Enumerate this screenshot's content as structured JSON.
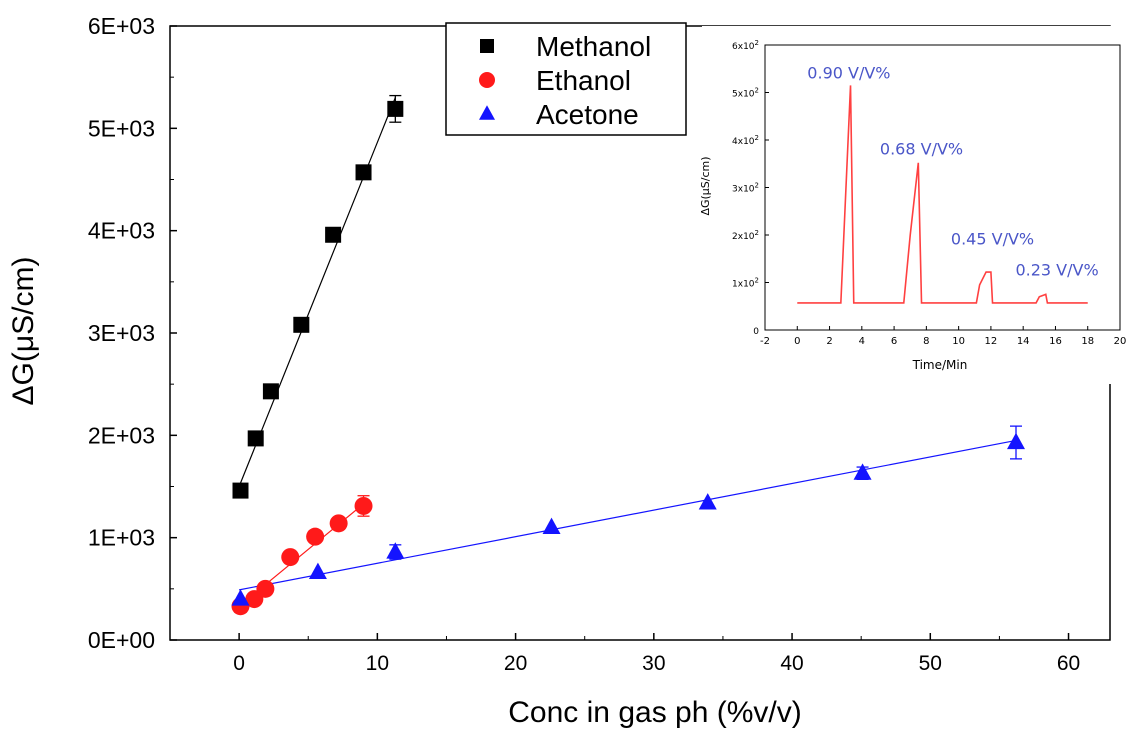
{
  "chart_data": {
    "main": {
      "type": "scatter",
      "xlabel": "Conc in gas ph (%v/v)",
      "ylabel": "ΔG(μS/cm)",
      "xlim": [
        -5,
        63
      ],
      "ylim": [
        0,
        6000
      ],
      "x_ticks": [
        {
          "value": 0,
          "label": "0"
        },
        {
          "value": 10,
          "label": "10"
        },
        {
          "value": 20,
          "label": "20"
        },
        {
          "value": 30,
          "label": "30"
        },
        {
          "value": 40,
          "label": "40"
        },
        {
          "value": 50,
          "label": "50"
        },
        {
          "value": 60,
          "label": "60"
        }
      ],
      "y_ticks": [
        {
          "value": 0,
          "label": "0E+00"
        },
        {
          "value": 1000,
          "label": "1E+03"
        },
        {
          "value": 2000,
          "label": "2E+03"
        },
        {
          "value": 3000,
          "label": "3E+03"
        },
        {
          "value": 4000,
          "label": "4E+03"
        },
        {
          "value": 5000,
          "label": "5E+03"
        },
        {
          "value": 6000,
          "label": "6E+03"
        }
      ],
      "grid": false,
      "legend_position": "top-center",
      "series": [
        {
          "name": "Methanol",
          "marker": "square",
          "color": "#000000",
          "x": [
            0.1,
            1.2,
            2.3,
            4.5,
            6.8,
            9.0,
            11.3
          ],
          "y": [
            1460,
            1970,
            2430,
            3080,
            3960,
            4570,
            5190
          ],
          "err": [
            0,
            0,
            0,
            0,
            0,
            0,
            130
          ],
          "fit": {
            "x": [
              0,
              11.3
            ],
            "y": [
              1500,
              5300
            ]
          }
        },
        {
          "name": "Ethanol",
          "marker": "circle",
          "color": "#ff1a1a",
          "x": [
            0.1,
            1.1,
            1.9,
            3.7,
            5.5,
            7.2,
            9.0
          ],
          "y": [
            330,
            400,
            500,
            810,
            1010,
            1140,
            1310
          ],
          "err": [
            40,
            30,
            0,
            0,
            0,
            0,
            100
          ],
          "fit": {
            "x": [
              0,
              9.0
            ],
            "y": [
              330,
              1330
            ]
          }
        },
        {
          "name": "Acetone",
          "marker": "triangle",
          "color": "#1414ff",
          "x": [
            0.1,
            5.7,
            11.3,
            22.6,
            33.9,
            45.1,
            56.2
          ],
          "y": [
            400,
            660,
            860,
            1100,
            1340,
            1630,
            1930
          ],
          "err": [
            0,
            0,
            70,
            0,
            0,
            60,
            160
          ],
          "fit": {
            "x": [
              0,
              56.2
            ],
            "y": [
              490,
              1950
            ]
          }
        }
      ]
    },
    "inset": {
      "type": "line",
      "xlabel": "Time/Min",
      "ylabel": "ΔG(μS/cm)",
      "xlim": [
        -2,
        20
      ],
      "ylim": [
        0,
        600
      ],
      "x_ticks": [
        {
          "value": -2,
          "label": "-2"
        },
        {
          "value": 0,
          "label": "0"
        },
        {
          "value": 2,
          "label": "2"
        },
        {
          "value": 4,
          "label": "4"
        },
        {
          "value": 6,
          "label": "6"
        },
        {
          "value": 8,
          "label": "8"
        },
        {
          "value": 10,
          "label": "10"
        },
        {
          "value": 12,
          "label": "12"
        },
        {
          "value": 14,
          "label": "14"
        },
        {
          "value": 16,
          "label": "16"
        },
        {
          "value": 18,
          "label": "18"
        },
        {
          "value": 20,
          "label": "20"
        }
      ],
      "y_ticks": [
        {
          "value": 0,
          "label": "0"
        },
        {
          "value": 100,
          "base": "1x10",
          "exp": "2"
        },
        {
          "value": 200,
          "base": "2x10",
          "exp": "2"
        },
        {
          "value": 300,
          "base": "3x10",
          "exp": "2"
        },
        {
          "value": 400,
          "base": "4x10",
          "exp": "2"
        },
        {
          "value": 500,
          "base": "5x10",
          "exp": "2"
        },
        {
          "value": 600,
          "base": "6x10",
          "exp": "2"
        }
      ],
      "series": [
        {
          "color": "#ff4040",
          "x": [
            0,
            2.7,
            3.3,
            3.5,
            6.6,
            7.0,
            7.5,
            7.7,
            11.1,
            11.3,
            11.7,
            12.0,
            12.1,
            14.8,
            15.0,
            15.4,
            15.5,
            18.0
          ],
          "y": [
            57,
            57,
            515,
            57,
            57,
            200,
            352,
            57,
            57,
            95,
            122,
            122,
            57,
            57,
            70,
            75,
            57,
            57
          ]
        }
      ],
      "annotations": [
        {
          "text": "0.90 V/V%",
          "x": 3.2,
          "y": 530,
          "color": "#4a56c8"
        },
        {
          "text": "0.68 V/V%",
          "x": 7.7,
          "y": 370,
          "color": "#4a56c8"
        },
        {
          "text": "0.45 V/V%",
          "x": 12.1,
          "y": 180,
          "color": "#4a56c8"
        },
        {
          "text": "0.23 V/V%",
          "x": 16.1,
          "y": 115,
          "color": "#4a56c8"
        }
      ]
    }
  }
}
